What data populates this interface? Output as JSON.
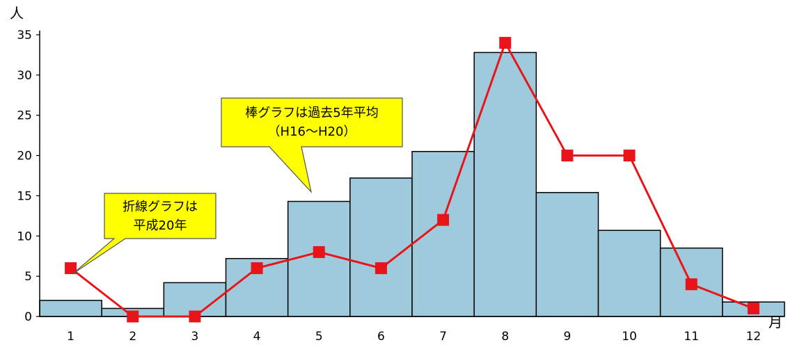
{
  "chart_data": {
    "type": "bar",
    "categories": [
      "1",
      "2",
      "3",
      "4",
      "5",
      "6",
      "7",
      "8",
      "9",
      "10",
      "11",
      "12"
    ],
    "series": [
      {
        "type": "bar",
        "values": [
          2,
          1,
          4.2,
          7.2,
          14.3,
          17.2,
          20.5,
          32.8,
          15.4,
          10.7,
          8.5,
          1.8
        ],
        "color": "#9fcadb"
      },
      {
        "type": "line",
        "values": [
          6,
          0,
          0,
          6,
          8,
          6,
          12,
          34,
          20,
          20,
          4,
          1
        ],
        "color": "#e8141a"
      }
    ],
    "ylabel": "人",
    "xlabel": "月",
    "ylim": [
      0,
      35
    ],
    "yticks": [
      0,
      5,
      10,
      15,
      20,
      25,
      30,
      35
    ],
    "annotations": [
      {
        "id": "bar-note",
        "lines": [
          "棒グラフは過去5年平均",
          "（H16～H20）"
        ]
      },
      {
        "id": "line-note",
        "lines": [
          "折線グラフは",
          "平成20年"
        ]
      }
    ],
    "callout_color": "#ffff00",
    "grid": false
  }
}
